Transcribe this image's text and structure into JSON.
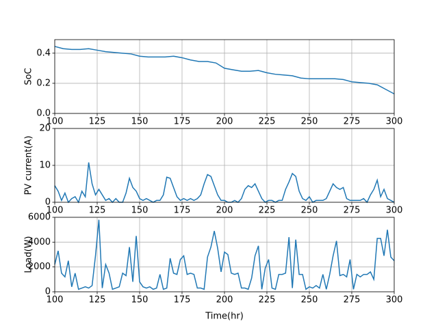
{
  "chart_data": [
    {
      "type": "line",
      "ylabel": "SoC",
      "xlim": [
        100,
        300
      ],
      "xticks": [
        100,
        125,
        150,
        175,
        200,
        225,
        250,
        275,
        300
      ],
      "ylim": [
        0,
        0.49
      ],
      "yticks": [
        {
          "value": 0,
          "label": "0.0"
        },
        0.2,
        0.4
      ],
      "grid": true,
      "x": [
        100,
        105,
        110,
        115,
        120,
        125,
        130,
        135,
        140,
        145,
        150,
        155,
        160,
        165,
        170,
        175,
        180,
        185,
        190,
        195,
        200,
        205,
        210,
        215,
        220,
        225,
        230,
        235,
        240,
        245,
        250,
        255,
        260,
        265,
        270,
        275,
        280,
        285,
        290,
        295,
        300
      ],
      "series": [
        {
          "color": "#1f77b4",
          "values": [
            0.445,
            0.43,
            0.425,
            0.425,
            0.43,
            0.42,
            0.41,
            0.405,
            0.4,
            0.395,
            0.38,
            0.375,
            0.375,
            0.375,
            0.38,
            0.37,
            0.355,
            0.345,
            0.345,
            0.335,
            0.3,
            0.29,
            0.28,
            0.28,
            0.285,
            0.27,
            0.26,
            0.255,
            0.25,
            0.235,
            0.23,
            0.23,
            0.23,
            0.23,
            0.225,
            0.21,
            0.205,
            0.2,
            0.19,
            0.16,
            0.13
          ]
        }
      ]
    },
    {
      "type": "line",
      "ylabel": "PV current(A)",
      "xlim": [
        100,
        300
      ],
      "xticks": [
        100,
        125,
        150,
        175,
        200,
        225,
        250,
        275,
        300
      ],
      "ylim": [
        0,
        20
      ],
      "yticks": [
        0,
        10,
        20
      ],
      "grid": true,
      "x": [
        100,
        102,
        104,
        106,
        108,
        110,
        112,
        114,
        116,
        118,
        120,
        122,
        124,
        126,
        128,
        130,
        132,
        134,
        136,
        138,
        140,
        142,
        144,
        146,
        148,
        150,
        152,
        154,
        156,
        158,
        160,
        162,
        164,
        166,
        168,
        170,
        172,
        174,
        176,
        178,
        180,
        182,
        184,
        186,
        188,
        190,
        192,
        194,
        196,
        198,
        200,
        202,
        204,
        206,
        208,
        210,
        212,
        214,
        216,
        218,
        220,
        222,
        224,
        226,
        228,
        230,
        232,
        234,
        236,
        238,
        240,
        242,
        244,
        246,
        248,
        250,
        252,
        254,
        256,
        258,
        260,
        262,
        264,
        266,
        268,
        270,
        272,
        274,
        276,
        278,
        280,
        282,
        284,
        286,
        288,
        290,
        292,
        294,
        296,
        298,
        300
      ],
      "series": [
        {
          "color": "#1f77b4",
          "values": [
            4.5,
            3,
            0.5,
            2.5,
            0,
            1,
            1.5,
            0,
            3,
            1.5,
            10.8,
            5,
            2,
            3.5,
            2,
            0.5,
            1,
            0,
            1,
            0,
            0,
            2.5,
            6.5,
            4,
            3,
            1,
            0.5,
            1,
            0.5,
            0,
            0.5,
            0.5,
            2,
            6.8,
            6.5,
            4,
            1.5,
            0.5,
            1,
            0.5,
            1,
            0.5,
            1,
            2,
            5,
            7.5,
            7,
            4.5,
            2,
            0.5,
            0.5,
            0,
            0,
            0.5,
            0,
            1,
            3.5,
            4.5,
            4,
            5,
            3,
            1,
            0,
            0.5,
            0.5,
            0,
            0.5,
            0.5,
            3.5,
            5.5,
            7.8,
            7,
            3,
            1,
            0.5,
            1.5,
            0,
            0.5,
            0.5,
            0.5,
            1,
            3,
            5,
            4,
            3.5,
            4,
            1,
            0.5,
            0.5,
            0.5,
            0.5,
            1,
            0,
            2,
            3.5,
            6,
            1.5,
            3.5,
            1,
            0.5,
            0
          ]
        }
      ]
    },
    {
      "type": "line",
      "ylabel": "Load(W)",
      "xlabel": "Time(hr)",
      "xlim": [
        100,
        300
      ],
      "xticks": [
        100,
        125,
        150,
        175,
        200,
        225,
        250,
        275,
        300
      ],
      "ylim": [
        0,
        6000
      ],
      "yticks": [
        0,
        2000,
        4000,
        6000
      ],
      "grid": true,
      "x": [
        100,
        102,
        104,
        106,
        108,
        110,
        112,
        114,
        116,
        118,
        120,
        122,
        124,
        126,
        128,
        130,
        132,
        134,
        136,
        138,
        140,
        142,
        144,
        146,
        148,
        150,
        152,
        154,
        156,
        158,
        160,
        162,
        164,
        166,
        168,
        170,
        172,
        174,
        176,
        178,
        180,
        182,
        184,
        186,
        188,
        190,
        192,
        194,
        196,
        198,
        200,
        202,
        204,
        206,
        208,
        210,
        212,
        214,
        216,
        218,
        220,
        222,
        224,
        226,
        228,
        230,
        232,
        234,
        236,
        238,
        240,
        242,
        244,
        246,
        248,
        250,
        252,
        254,
        256,
        258,
        260,
        262,
        264,
        266,
        268,
        270,
        272,
        274,
        276,
        278,
        280,
        282,
        284,
        286,
        288,
        290,
        292,
        294,
        296,
        298,
        300
      ],
      "series": [
        {
          "color": "#1f77b4",
          "values": [
            2200,
            3300,
            1500,
            1200,
            2500,
            400,
            1500,
            200,
            300,
            400,
            300,
            500,
            2900,
            5800,
            300,
            2200,
            1500,
            200,
            300,
            400,
            1500,
            1300,
            3600,
            800,
            4500,
            800,
            400,
            300,
            400,
            200,
            300,
            1400,
            200,
            300,
            2700,
            1500,
            1400,
            2600,
            2900,
            1400,
            1500,
            1400,
            300,
            300,
            200,
            2800,
            3600,
            4900,
            3500,
            1600,
            3200,
            3000,
            1500,
            1400,
            1500,
            300,
            300,
            200,
            1100,
            2900,
            3700,
            200,
            1900,
            2600,
            300,
            200,
            1400,
            1400,
            1500,
            4400,
            300,
            4200,
            1400,
            1400,
            200,
            400,
            300,
            500,
            300,
            1400,
            200,
            1400,
            2900,
            4100,
            1300,
            1400,
            1200,
            2600,
            200,
            1400,
            1200,
            1400,
            1400,
            1600,
            1000,
            4300,
            4300,
            2900,
            5000,
            2800,
            2500
          ]
        }
      ]
    }
  ]
}
